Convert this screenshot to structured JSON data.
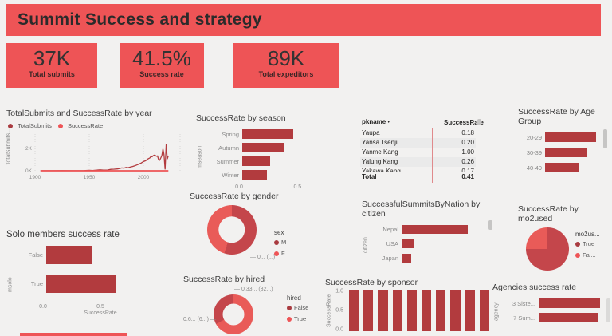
{
  "palette": {
    "accent": "#ee5456",
    "bar": "#b23b3e",
    "series_dark": "#a93b40",
    "series_light": "#ee5456",
    "pie_dark": "#c4464b",
    "pie_light": "#e95b58",
    "background": "#f2f1f0"
  },
  "header": {
    "title": "Summit Success and strategy"
  },
  "kpis": [
    {
      "value": "37K",
      "label": "Total submits"
    },
    {
      "value": "41.5%",
      "label": "Success rate"
    },
    {
      "value": "89K",
      "label": "Total expeditors"
    }
  ],
  "table": {
    "columns": [
      "pkname",
      "SuccessRate"
    ],
    "sort_glyph": "▼",
    "rows": [
      {
        "pkname": "Yaupa",
        "rate": "0.18"
      },
      {
        "pkname": "Yansa Tsenji",
        "rate": "0.20"
      },
      {
        "pkname": "Yanme Kang",
        "rate": "1.00"
      },
      {
        "pkname": "Yalung Kang",
        "rate": "0.26"
      },
      {
        "pkname": "Yakawa Kang",
        "rate": "0.17"
      }
    ],
    "total_label": "Total",
    "total_value": "0.41"
  },
  "chart_data": [
    {
      "id": "by_year",
      "type": "line",
      "title": "TotalSubmits and SuccessRate by year",
      "ylabel": "TotalSubmits...",
      "xlim": [
        1890,
        2025
      ],
      "ylim": [
        0,
        2500
      ],
      "x_ticks": [
        1900,
        1950,
        2000
      ],
      "y_ticks": [
        {
          "value": 2000,
          "label": "2K"
        },
        {
          "value": 0,
          "label": "0K"
        }
      ],
      "legend": [
        {
          "label": "TotalSubmits",
          "shade": "dark"
        },
        {
          "label": "SuccessRate",
          "shade": "light"
        }
      ],
      "series": [
        {
          "name": "TotalSubmits",
          "shade": "dark",
          "points": [
            [
              1905,
              5
            ],
            [
              1915,
              8
            ],
            [
              1925,
              12
            ],
            [
              1935,
              10
            ],
            [
              1945,
              15
            ],
            [
              1950,
              40
            ],
            [
              1953,
              30
            ],
            [
              1957,
              60
            ],
            [
              1960,
              85
            ],
            [
              1963,
              60
            ],
            [
              1967,
              75
            ],
            [
              1970,
              130
            ],
            [
              1973,
              145
            ],
            [
              1976,
              165
            ],
            [
              1978,
              205
            ],
            [
              1980,
              260
            ],
            [
              1982,
              235
            ],
            [
              1984,
              300
            ],
            [
              1986,
              280
            ],
            [
              1988,
              345
            ],
            [
              1990,
              385
            ],
            [
              1992,
              450
            ],
            [
              1994,
              520
            ],
            [
              1996,
              610
            ],
            [
              1998,
              700
            ],
            [
              2000,
              820
            ],
            [
              2002,
              900
            ],
            [
              2004,
              1050
            ],
            [
              2006,
              1160
            ],
            [
              2007,
              1300
            ],
            [
              2008,
              1250
            ],
            [
              2009,
              1350
            ],
            [
              2010,
              1400
            ],
            [
              2011,
              1370
            ],
            [
              2012,
              1300
            ],
            [
              2013,
              1330
            ],
            [
              2014,
              1000
            ],
            [
              2015,
              950
            ],
            [
              2016,
              1150
            ],
            [
              2017,
              1350
            ],
            [
              2018,
              1950
            ],
            [
              2019,
              1450
            ],
            [
              2020,
              120
            ],
            [
              2021,
              2400
            ],
            [
              2022,
              1050
            ],
            [
              2023,
              1350
            ]
          ]
        },
        {
          "name": "SuccessRate",
          "shade": "light",
          "points": [
            [
              1905,
              0
            ],
            [
              2023,
              0
            ]
          ],
          "note": "rate 0-1, flat at left-axis scale"
        }
      ]
    },
    {
      "id": "season",
      "type": "bar",
      "orientation": "horizontal",
      "title": "SuccessRate by season",
      "ylabel": "mseason",
      "categories": [
        "Spring",
        "Autumn",
        "Summer",
        "Winter"
      ],
      "values": [
        0.45,
        0.37,
        0.25,
        0.22
      ],
      "xlim": [
        0,
        0.75
      ],
      "x_ticks": [
        {
          "value": 0,
          "label": "0.0"
        },
        {
          "value": 0.5,
          "label": "0.5"
        }
      ]
    },
    {
      "id": "age",
      "type": "bar",
      "orientation": "horizontal",
      "title": "SuccessRate by Age Group",
      "categories": [
        "20-29",
        "30-39",
        "40-49"
      ],
      "values": [
        0.46,
        0.38,
        0.31
      ],
      "xlim": [
        0,
        0.5
      ]
    },
    {
      "id": "solo",
      "type": "bar",
      "orientation": "horizontal",
      "title": "Solo members success rate",
      "ylabel": "msolo",
      "xlabel": "SuccessRate",
      "categories": [
        "False",
        "True"
      ],
      "values": [
        0.41,
        0.62
      ],
      "xlim": [
        0,
        1.0
      ],
      "x_ticks": [
        {
          "value": 0,
          "label": "0.0"
        },
        {
          "value": 0.5,
          "label": "0.5"
        }
      ]
    },
    {
      "id": "gender",
      "type": "donut",
      "title": "SuccessRate by gender",
      "legend_title": "sex",
      "segments": [
        {
          "label": "M",
          "value": 55,
          "shade": "dark"
        },
        {
          "label": "F",
          "value": 45,
          "shade": "light"
        }
      ],
      "legend": [
        {
          "label": "M",
          "shade": "dark"
        },
        {
          "label": "F",
          "shade": "light"
        }
      ],
      "callouts": [
        "0... (...)"
      ]
    },
    {
      "id": "hired",
      "type": "donut",
      "title": "SuccessRate by hired",
      "legend_title": "hired",
      "segments": [
        {
          "label": "True",
          "value": 67,
          "shade": "light"
        },
        {
          "label": "False",
          "value": 33,
          "shade": "dark"
        }
      ],
      "legend": [
        {
          "label": "False",
          "shade": "dark"
        },
        {
          "label": "True",
          "shade": "light"
        }
      ],
      "callouts": [
        "0.33... (32...)",
        "0.6... (6...)"
      ]
    },
    {
      "id": "nation",
      "type": "bar",
      "orientation": "horizontal",
      "title": "SuccessfulSummitsByNation by citizen",
      "ylabel": "citizen",
      "categories": [
        "Nepal",
        "USA",
        "Japan"
      ],
      "values": [
        1.0,
        0.19,
        0.15
      ],
      "xlim": [
        0,
        1.28
      ],
      "axis_labeled": false
    },
    {
      "id": "sponsor",
      "type": "bar",
      "orientation": "vertical",
      "title": "SuccessRate by sponsor",
      "ylabel": "SuccessRate",
      "values": [
        1,
        1,
        1,
        1,
        1,
        1,
        1,
        1,
        1,
        1
      ],
      "ylim": [
        0,
        1
      ],
      "y_ticks": [
        {
          "value": 1,
          "label": "1.0"
        },
        {
          "value": 0.5,
          "label": "0.5"
        },
        {
          "value": 0,
          "label": "0.0"
        }
      ],
      "category_labels_visible": false
    },
    {
      "id": "mo2used",
      "type": "pie",
      "title": "SuccessRate by mo2used",
      "legend_title": "mo2us...",
      "segments": [
        {
          "label": "True",
          "value": 75,
          "shade": "dark"
        },
        {
          "label": "Fal...",
          "value": 25,
          "shade": "light"
        }
      ],
      "legend": [
        {
          "label": "True",
          "shade": "dark"
        },
        {
          "label": "Fal...",
          "shade": "light"
        }
      ]
    },
    {
      "id": "agencies",
      "type": "bar",
      "orientation": "horizontal",
      "title": "Agencies success rate",
      "ylabel": "agency",
      "categories": [
        "3 Siste...",
        "7 Sum..."
      ],
      "values": [
        1.0,
        0.97
      ],
      "xlim": [
        0,
        1.07
      ],
      "axis_labeled": false
    }
  ]
}
